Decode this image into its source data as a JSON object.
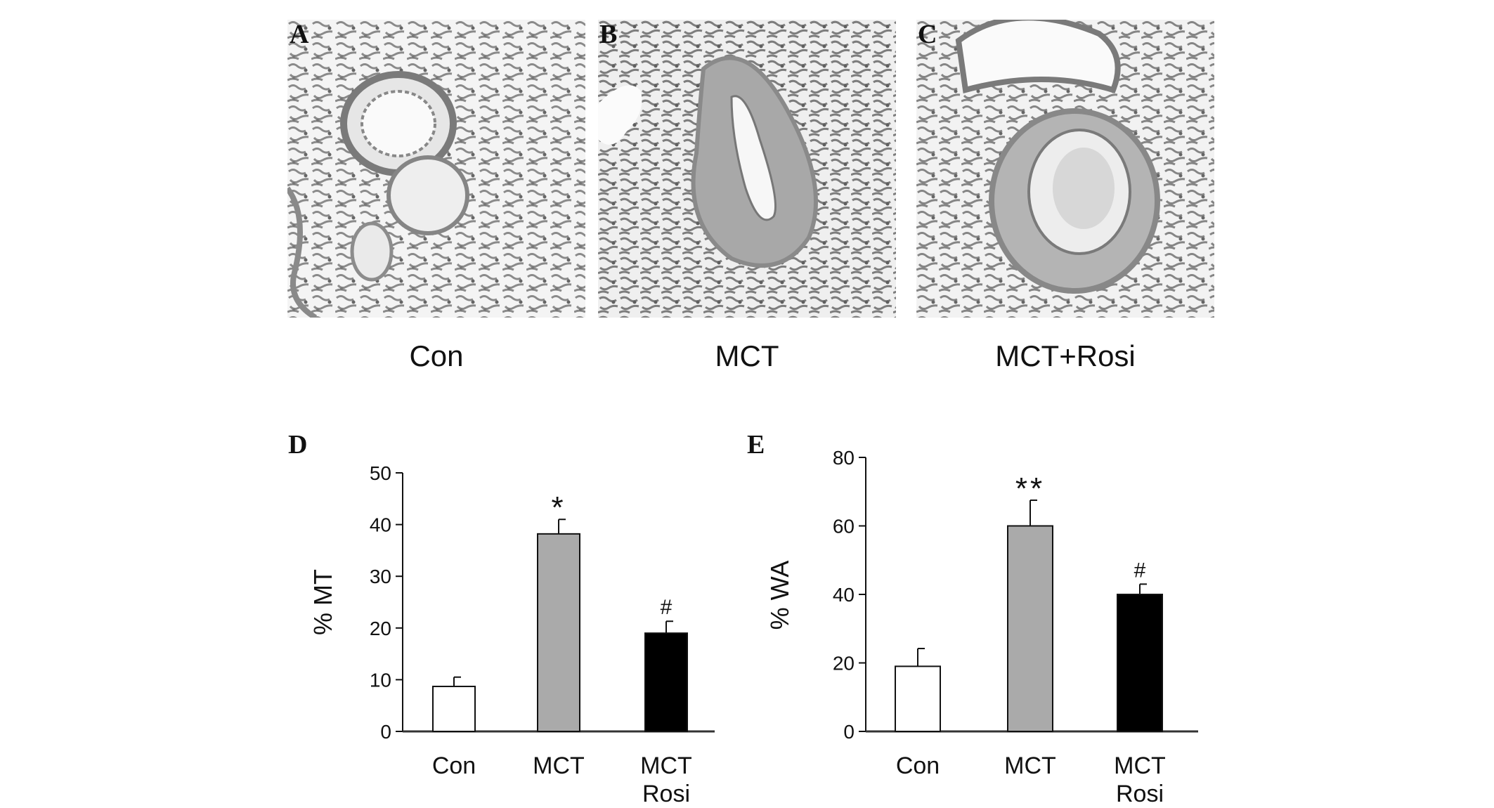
{
  "micrographs": [
    {
      "letter": "A",
      "caption": "Con"
    },
    {
      "letter": "B",
      "caption": "MCT"
    },
    {
      "letter": "C",
      "caption": "MCT+Rosi"
    }
  ],
  "chart_data": [
    {
      "panel": "D",
      "type": "bar",
      "title": "",
      "ylabel": "% MT",
      "xlabel": "",
      "categories": [
        [
          "Con"
        ],
        [
          "MCT"
        ],
        [
          "MCT",
          "Rosi"
        ]
      ],
      "values": [
        8.7,
        38.2,
        19.0
      ],
      "errors": [
        1.8,
        2.8,
        2.3
      ],
      "bar_colors": [
        "#ffffff",
        "#aaaaaa",
        "#000000"
      ],
      "annotations": [
        "",
        "*",
        "#"
      ],
      "ylim": [
        0,
        50
      ],
      "yticks": [
        0,
        10,
        20,
        30,
        40,
        50
      ],
      "grid": false
    },
    {
      "panel": "E",
      "type": "bar",
      "title": "",
      "ylabel": "% WA",
      "xlabel": "",
      "categories": [
        [
          "Con"
        ],
        [
          "MCT"
        ],
        [
          "MCT",
          "Rosi"
        ]
      ],
      "values": [
        19.0,
        60.0,
        40.0
      ],
      "errors": [
        5.2,
        7.5,
        3.0
      ],
      "bar_colors": [
        "#ffffff",
        "#aaaaaa",
        "#000000"
      ],
      "annotations": [
        "",
        "**",
        "#"
      ],
      "ylim": [
        0,
        80
      ],
      "yticks": [
        0,
        20,
        40,
        60,
        80
      ],
      "grid": false
    }
  ]
}
